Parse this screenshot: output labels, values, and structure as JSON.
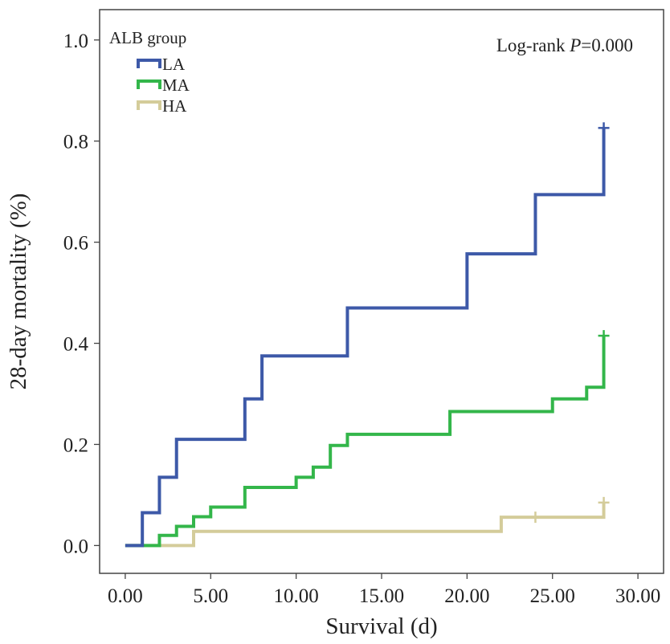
{
  "chart_data": {
    "type": "line",
    "step": true,
    "xlabel": "Survival (d)",
    "ylabel": "28-day mortality (%)",
    "xlim": [
      -1.5,
      31.5
    ],
    "ylim": [
      -0.055,
      1.06
    ],
    "xticks": [
      0,
      5,
      10,
      15,
      20,
      25,
      30
    ],
    "xtick_labels": [
      "0.00",
      "5.00",
      "10.00",
      "15.00",
      "20.00",
      "25.00",
      "30.00"
    ],
    "yticks": [
      0,
      0.2,
      0.4,
      0.6,
      0.8,
      1.0
    ],
    "ytick_labels": [
      "0.0",
      "0.2",
      "0.4",
      "0.6",
      "0.8",
      "1.0"
    ],
    "grid": false,
    "legend": {
      "title": "ALB group",
      "position": "top-left"
    },
    "annotation": {
      "prefix": "Log-rank ",
      "italic": "P",
      "suffix": "=0.000"
    },
    "series": [
      {
        "name": "LA",
        "color": "#3d59a8",
        "points": [
          [
            0,
            0
          ],
          [
            1,
            0.065
          ],
          [
            2,
            0.135
          ],
          [
            3,
            0.21
          ],
          [
            7,
            0.29
          ],
          [
            8,
            0.375
          ],
          [
            13,
            0.47
          ],
          [
            20,
            0.577
          ],
          [
            24,
            0.694
          ],
          [
            28,
            0.826
          ]
        ],
        "censored": [
          [
            28,
            0.826
          ]
        ]
      },
      {
        "name": "MA",
        "color": "#33b64a",
        "points": [
          [
            0,
            0
          ],
          [
            2,
            0.02
          ],
          [
            3,
            0.038
          ],
          [
            4,
            0.057
          ],
          [
            5,
            0.076
          ],
          [
            7,
            0.115
          ],
          [
            10,
            0.135
          ],
          [
            11,
            0.155
          ],
          [
            12,
            0.198
          ],
          [
            13,
            0.22
          ],
          [
            19,
            0.265
          ],
          [
            25,
            0.29
          ],
          [
            27,
            0.313
          ],
          [
            28,
            0.415
          ]
        ],
        "censored": [
          [
            28,
            0.415
          ]
        ]
      },
      {
        "name": "HA",
        "color": "#d4cc9a",
        "points": [
          [
            0,
            0
          ],
          [
            4,
            0.028
          ],
          [
            22,
            0.056
          ],
          [
            28,
            0.085
          ]
        ],
        "censored": [
          [
            24,
            0.056
          ],
          [
            28,
            0.085
          ]
        ]
      }
    ]
  }
}
